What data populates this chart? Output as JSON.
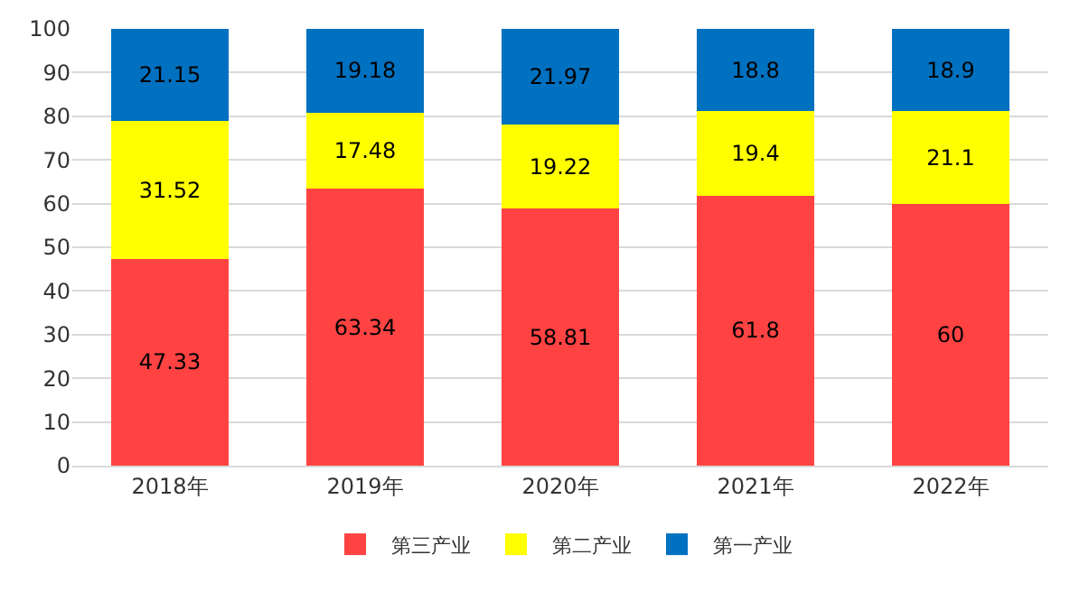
{
  "chart_data": {
    "type": "bar",
    "stacked": true,
    "categories": [
      "2018年",
      "2019年",
      "2020年",
      "2021年",
      "2022年"
    ],
    "series": [
      {
        "name": "第三产业",
        "color": "#ff4343",
        "values": [
          47.33,
          63.34,
          58.81,
          61.8,
          60
        ]
      },
      {
        "name": "第二产业",
        "color": "#ffff00",
        "values": [
          31.52,
          17.48,
          19.22,
          19.4,
          21.1
        ]
      },
      {
        "name": "第一产业",
        "color": "#0070c0",
        "values": [
          21.15,
          19.18,
          21.97,
          18.8,
          18.9
        ]
      }
    ],
    "ylim": [
      0,
      100
    ],
    "yticks": [
      0,
      10,
      20,
      30,
      40,
      50,
      60,
      70,
      80,
      90,
      100
    ],
    "grid": "y",
    "legend": "bottom",
    "data_labels": true
  }
}
